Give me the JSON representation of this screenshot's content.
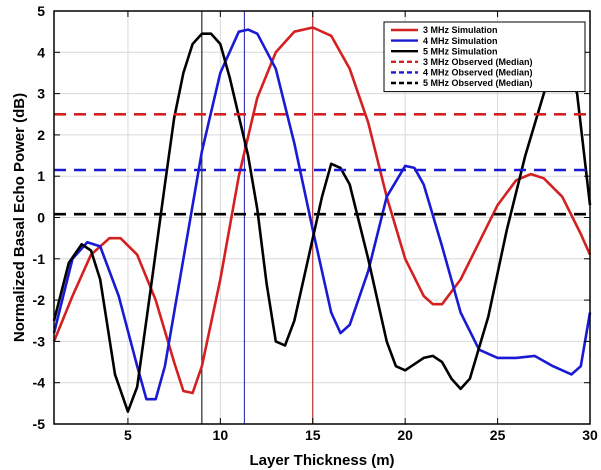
{
  "chart_data": {
    "type": "line",
    "xlabel": "Layer Thickness (m)",
    "ylabel": "Normalized Basal Echo Power (dB)",
    "xlim": [
      1,
      30
    ],
    "ylim": [
      -5,
      5
    ],
    "xticks": [
      5,
      10,
      15,
      20,
      25,
      30
    ],
    "yticks": [
      -5,
      -4,
      -3,
      -2,
      -1,
      0,
      1,
      2,
      3,
      4,
      5
    ],
    "grid": true,
    "legend_position": "top-right",
    "vertical_markers": [
      {
        "x": 9.0,
        "color": "#000000"
      },
      {
        "x": 11.3,
        "color": "#1a1aa8"
      },
      {
        "x": 15.0,
        "color": "#b01010"
      }
    ],
    "series": [
      {
        "name": "3 MHz Simulation",
        "style": "solid",
        "color": "#d42020",
        "points": [
          [
            1,
            -3.0
          ],
          [
            2,
            -1.9
          ],
          [
            3,
            -0.9
          ],
          [
            4,
            -0.5
          ],
          [
            4.6,
            -0.5
          ],
          [
            5.5,
            -0.9
          ],
          [
            6.5,
            -2.0
          ],
          [
            7.5,
            -3.5
          ],
          [
            8,
            -4.2
          ],
          [
            8.5,
            -4.25
          ],
          [
            9,
            -3.6
          ],
          [
            10,
            -1.5
          ],
          [
            11,
            1.0
          ],
          [
            12,
            2.9
          ],
          [
            13,
            4.0
          ],
          [
            14,
            4.5
          ],
          [
            15,
            4.6
          ],
          [
            16,
            4.4
          ],
          [
            17,
            3.6
          ],
          [
            18,
            2.3
          ],
          [
            19,
            0.5
          ],
          [
            20,
            -1.0
          ],
          [
            21,
            -1.9
          ],
          [
            21.5,
            -2.1
          ],
          [
            22,
            -2.1
          ],
          [
            23,
            -1.5
          ],
          [
            24,
            -0.6
          ],
          [
            25,
            0.3
          ],
          [
            26,
            0.9
          ],
          [
            26.8,
            1.05
          ],
          [
            27.5,
            0.95
          ],
          [
            28.5,
            0.5
          ],
          [
            29.5,
            -0.4
          ],
          [
            30,
            -0.9
          ]
        ]
      },
      {
        "name": "4 MHz Simulation",
        "style": "solid",
        "color": "#1a1ad4",
        "points": [
          [
            1,
            -2.8
          ],
          [
            2,
            -1.0
          ],
          [
            2.8,
            -0.6
          ],
          [
            3.5,
            -0.7
          ],
          [
            4.5,
            -1.9
          ],
          [
            5.5,
            -3.6
          ],
          [
            6,
            -4.4
          ],
          [
            6.5,
            -4.4
          ],
          [
            7,
            -3.6
          ],
          [
            8,
            -1.0
          ],
          [
            9,
            1.6
          ],
          [
            10,
            3.5
          ],
          [
            11,
            4.5
          ],
          [
            11.5,
            4.55
          ],
          [
            12,
            4.45
          ],
          [
            13,
            3.6
          ],
          [
            14,
            1.8
          ],
          [
            15,
            -0.3
          ],
          [
            16,
            -2.3
          ],
          [
            16.5,
            -2.8
          ],
          [
            17,
            -2.6
          ],
          [
            18,
            -1.3
          ],
          [
            19,
            0.5
          ],
          [
            20,
            1.25
          ],
          [
            20.5,
            1.2
          ],
          [
            21,
            0.8
          ],
          [
            22,
            -0.7
          ],
          [
            23,
            -2.3
          ],
          [
            24,
            -3.2
          ],
          [
            25,
            -3.4
          ],
          [
            26,
            -3.4
          ],
          [
            27,
            -3.35
          ],
          [
            28,
            -3.6
          ],
          [
            29,
            -3.8
          ],
          [
            29.5,
            -3.6
          ],
          [
            30,
            -2.3
          ]
        ]
      },
      {
        "name": "5 MHz Simulation",
        "style": "solid",
        "color": "#000000",
        "points": [
          [
            1,
            -2.5
          ],
          [
            1.8,
            -1.1
          ],
          [
            2.5,
            -0.65
          ],
          [
            3,
            -0.8
          ],
          [
            3.5,
            -1.5
          ],
          [
            4.3,
            -3.8
          ],
          [
            5,
            -4.7
          ],
          [
            5.5,
            -4.1
          ],
          [
            6.3,
            -1.5
          ],
          [
            7,
            0.8
          ],
          [
            7.5,
            2.4
          ],
          [
            8,
            3.5
          ],
          [
            8.5,
            4.2
          ],
          [
            9,
            4.45
          ],
          [
            9.5,
            4.45
          ],
          [
            10,
            4.2
          ],
          [
            10.5,
            3.4
          ],
          [
            11.5,
            1.5
          ],
          [
            12,
            0.2
          ],
          [
            12.5,
            -1.6
          ],
          [
            13,
            -3.0
          ],
          [
            13.5,
            -3.1
          ],
          [
            14,
            -2.5
          ],
          [
            15,
            -0.5
          ],
          [
            15.5,
            0.5
          ],
          [
            16,
            1.3
          ],
          [
            16.5,
            1.2
          ],
          [
            17,
            0.8
          ],
          [
            18,
            -1.0
          ],
          [
            19,
            -3.0
          ],
          [
            19.5,
            -3.6
          ],
          [
            20,
            -3.7
          ],
          [
            21,
            -3.4
          ],
          [
            21.5,
            -3.35
          ],
          [
            22,
            -3.5
          ],
          [
            22.5,
            -3.9
          ],
          [
            23,
            -4.15
          ],
          [
            23.5,
            -3.9
          ],
          [
            24.5,
            -2.4
          ],
          [
            25.5,
            -0.3
          ],
          [
            26.5,
            1.5
          ],
          [
            27.5,
            3.0
          ],
          [
            28,
            3.6
          ],
          [
            28.7,
            3.75
          ],
          [
            29.3,
            3.0
          ],
          [
            30,
            0.3
          ]
        ]
      },
      {
        "name": "3 MHz Observed (Median)",
        "style": "dashed",
        "color": "#d42020",
        "points": [
          [
            1,
            2.5
          ],
          [
            30,
            2.5
          ]
        ]
      },
      {
        "name": "4 MHz Observed (Median)",
        "style": "dashed",
        "color": "#1a1ad4",
        "points": [
          [
            1,
            1.15
          ],
          [
            30,
            1.15
          ]
        ]
      },
      {
        "name": "5 MHz Observed (Median)",
        "style": "dashed",
        "color": "#000000",
        "points": [
          [
            1,
            0.08
          ],
          [
            30,
            0.08
          ]
        ]
      }
    ]
  }
}
